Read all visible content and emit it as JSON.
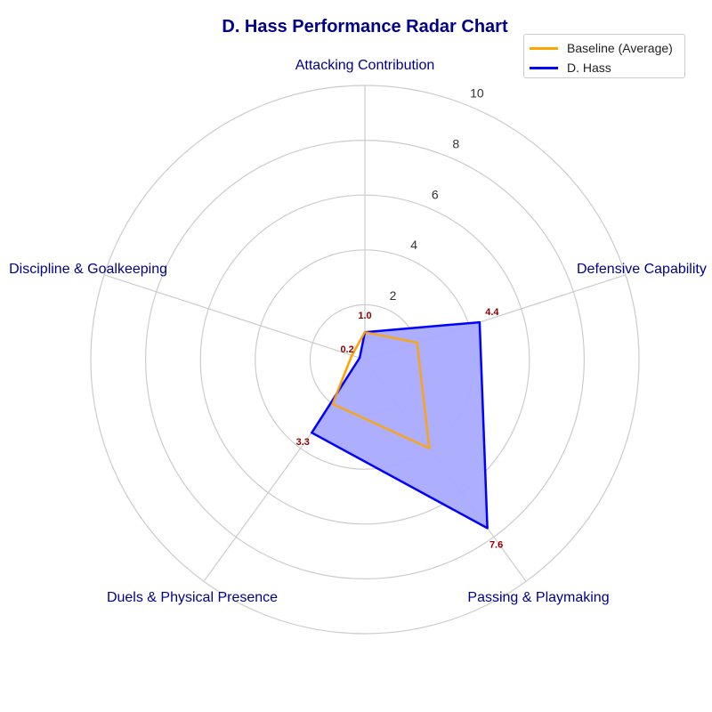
{
  "chart_data": {
    "type": "radar",
    "title": "D. Hass Performance Radar Chart",
    "categories": [
      "Attacking Contribution",
      "Defensive Capability",
      "Passing & Playmaking",
      "Duels & Physical Presence",
      "Discipline & Goalkeeping"
    ],
    "radial_range": [
      0,
      10
    ],
    "radial_ticks": [
      2,
      4,
      6,
      8,
      10
    ],
    "grid": true,
    "legend_position": "top-right",
    "series": [
      {
        "name": "Baseline (Average)",
        "values": [
          1.0,
          2.0,
          4.0,
          2.0,
          0.5
        ],
        "color": "#ffa500",
        "fill": false
      },
      {
        "name": "D. Hass",
        "values": [
          1.0,
          4.4,
          7.6,
          3.3,
          0.2
        ],
        "color": "#0000ff",
        "fill": true,
        "fill_color": "#aaaaff"
      }
    ],
    "data_labels": [
      "1.0",
      "4.4",
      "7.6",
      "3.3",
      "0.2"
    ],
    "colors": {
      "title": "#00008b",
      "category_label": "#00008b",
      "data_label": "#8b0000",
      "grid": "#cccccc"
    }
  }
}
